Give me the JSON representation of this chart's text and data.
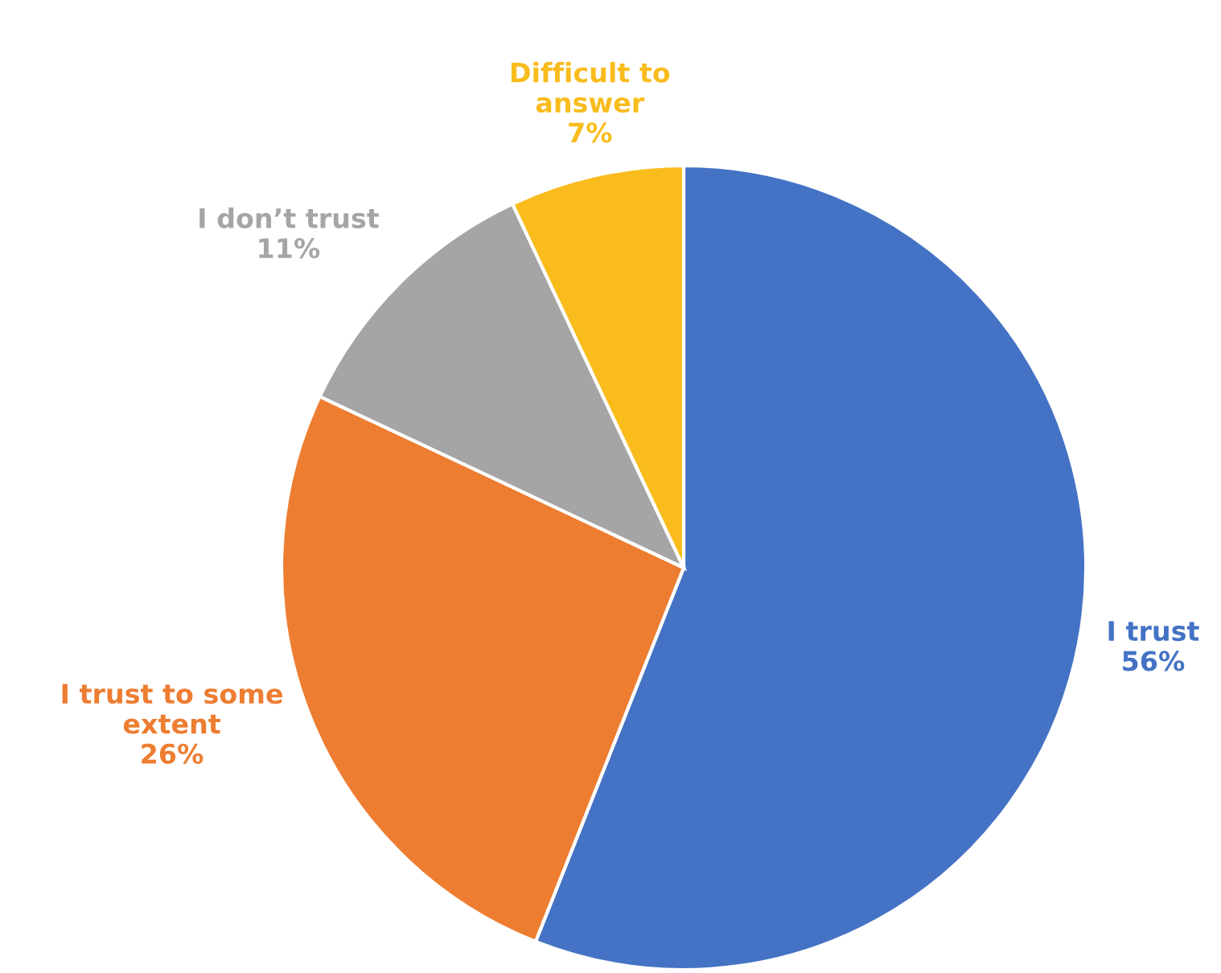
{
  "chart_data": {
    "type": "pie",
    "categories": [
      "I trust",
      "I trust to some\nextent",
      "I don’t trust",
      "Difficult to\nanswer"
    ],
    "values": [
      56,
      26,
      11,
      7
    ],
    "value_labels": [
      "56%",
      "26%",
      "11%",
      "7%"
    ],
    "colors": [
      "#4472c4",
      "#ed7d31",
      "#a5a5a5",
      "#f9bc1c"
    ],
    "legend": false
  }
}
